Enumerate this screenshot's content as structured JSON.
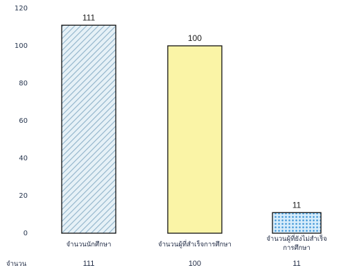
{
  "chart_data": {
    "type": "bar",
    "categories": [
      "จำนวนนักศึกษา",
      "จำนวนผู้ที่สำเร็จการศึกษา",
      "จำนวนผู้ที่ยังไม่สำเร็จการศึกษา"
    ],
    "category_lines": [
      [
        "จำนวนนักศึกษา"
      ],
      [
        "จำนวนผู้ที่สำเร็จการศึกษา"
      ],
      [
        "จำนวนผู้ที่ยังไม่สำเร็จ",
        "การศึกษา"
      ]
    ],
    "values": [
      111,
      100,
      11
    ],
    "data_labels": [
      "111",
      "100",
      "11"
    ],
    "ylim": [
      0,
      120
    ],
    "yticks": [
      0,
      20,
      40,
      60,
      80,
      100,
      120
    ],
    "grid": false,
    "legend": "none",
    "table_row": {
      "header": "จำนวน",
      "values": [
        "111",
        "100",
        "11"
      ]
    },
    "colors": {
      "bar1_fill": "#e6f1f7",
      "bar1_hatch": "#8fb2c9",
      "bar2_fill": "#faf4a6",
      "bar3_fill": "#d6ecfb",
      "bar3_dots": "#3d95d6",
      "bar_edge": "#111111"
    }
  }
}
